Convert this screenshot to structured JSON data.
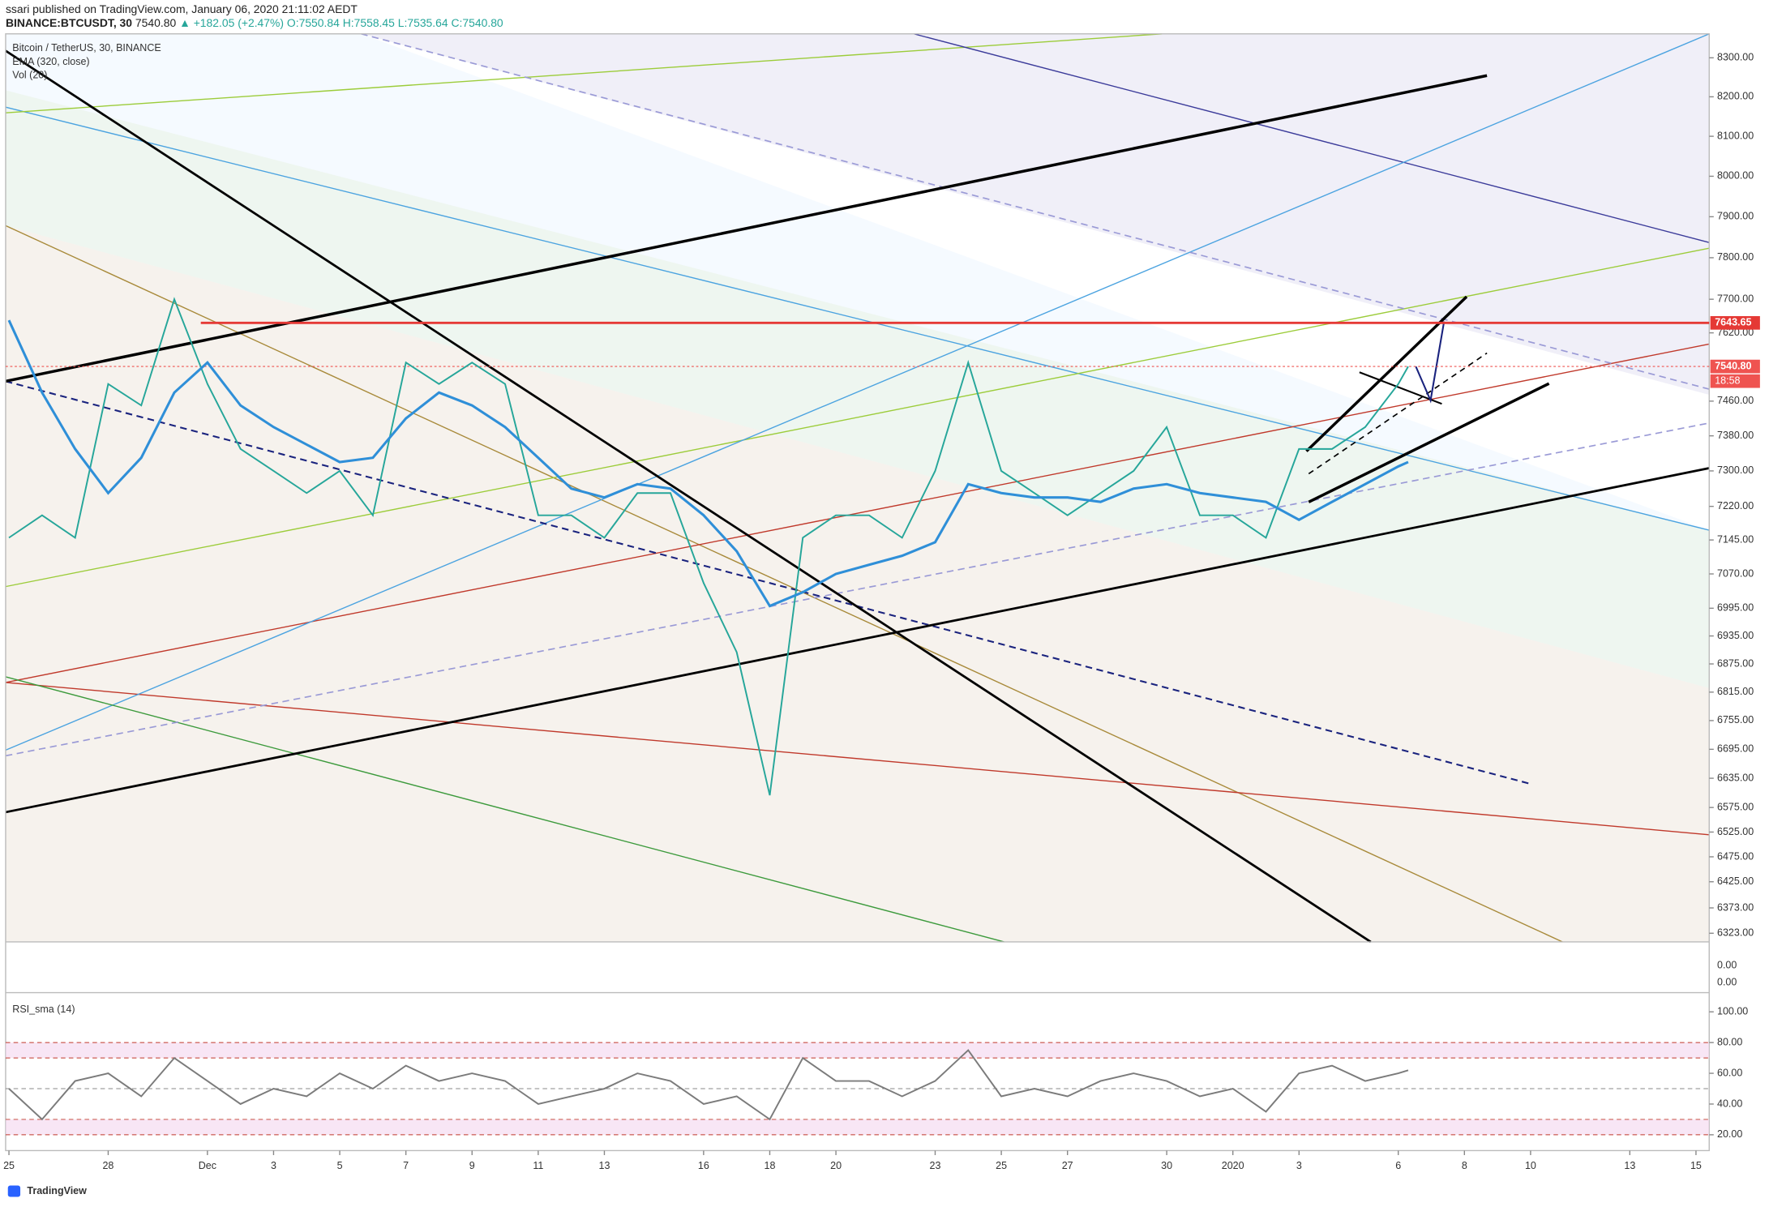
{
  "header": {
    "published": "ssari published on TradingView.com, January 06, 2020 21:11:02 AEDT",
    "symbol": "BINANCE:BTCUSDT, 30",
    "last": "7540.80",
    "change": "▲ +182.05 (+2.47%)",
    "ohlc": "O:7550.84 H:7558.45 L:7535.64 C:7540.80"
  },
  "volume_axis_labels": [
    "0.00",
    "0.00"
  ],
  "footer": {
    "brand": "TradingView"
  },
  "chart_data": [
    {
      "type": "line",
      "log_scale": true,
      "x": [
        0,
        1,
        2,
        3,
        4,
        5,
        6,
        7,
        8,
        9,
        10,
        11,
        12,
        13,
        14,
        15,
        16,
        17,
        18,
        19,
        20,
        21,
        22,
        23,
        24,
        25,
        26,
        27,
        28,
        29,
        30,
        31,
        32,
        33,
        34,
        35,
        36,
        37,
        38,
        39,
        40,
        41,
        42,
        42.3
      ],
      "series": [
        {
          "name": "Bitcoin / TetherUS, 30, BINANCE",
          "color": "#26a69a",
          "values": [
            7150,
            7200,
            7150,
            7500,
            7450,
            7700,
            7500,
            7350,
            7300,
            7250,
            7300,
            7200,
            7550,
            7500,
            7550,
            7500,
            7200,
            7200,
            7150,
            7250,
            7250,
            7050,
            6900,
            6600,
            7150,
            7200,
            7200,
            7150,
            7300,
            7550,
            7300,
            7250,
            7200,
            7250,
            7300,
            7400,
            7200,
            7200,
            7150,
            7350,
            7350,
            7400,
            7500,
            7540.8
          ]
        },
        {
          "name": "EMA (320, close)",
          "color": "#2f8fd8",
          "values": [
            7650,
            7480,
            7350,
            7250,
            7330,
            7480,
            7550,
            7450,
            7400,
            7360,
            7320,
            7330,
            7420,
            7480,
            7450,
            7400,
            7330,
            7260,
            7240,
            7270,
            7260,
            7200,
            7120,
            7000,
            7030,
            7070,
            7090,
            7110,
            7140,
            7270,
            7250,
            7240,
            7240,
            7230,
            7260,
            7270,
            7250,
            7240,
            7230,
            7190,
            7230,
            7270,
            7310,
            7320
          ]
        }
      ],
      "annotations": [
        "Vol (20)"
      ],
      "xlim": [
        -0.1,
        51.4
      ],
      "ylim": [
        6306,
        8362
      ],
      "yticks": [
        {
          "value": 8300,
          "label": "8300.00"
        },
        {
          "value": 8200,
          "label": "8200.00"
        },
        {
          "value": 8100,
          "label": "8100.00"
        },
        {
          "value": 8000,
          "label": "8000.00"
        },
        {
          "value": 7900,
          "label": "7900.00"
        },
        {
          "value": 7800,
          "label": "7800.00"
        },
        {
          "value": 7700,
          "label": "7700.00"
        },
        {
          "value": 7620,
          "label": "7620.00"
        },
        {
          "value": 7460,
          "label": "7460.00"
        },
        {
          "value": 7380,
          "label": "7380.00"
        },
        {
          "value": 7300,
          "label": "7300.00"
        },
        {
          "value": 7220,
          "label": "7220.00"
        },
        {
          "value": 7145,
          "label": "7145.00"
        },
        {
          "value": 7070,
          "label": "7070.00"
        },
        {
          "value": 6995,
          "label": "6995.00"
        },
        {
          "value": 6935,
          "label": "6935.00"
        },
        {
          "value": 6875,
          "label": "6875.00"
        },
        {
          "value": 6815,
          "label": "6815.00"
        },
        {
          "value": 6755,
          "label": "6755.00"
        },
        {
          "value": 6695,
          "label": "6695.00"
        },
        {
          "value": 6635,
          "label": "6635.00"
        },
        {
          "value": 6575,
          "label": "6575.00"
        },
        {
          "value": 6525,
          "label": "6525.00"
        },
        {
          "value": 6475,
          "label": "6475.00"
        },
        {
          "value": 6425,
          "label": "6425.00"
        },
        {
          "value": 6373,
          "label": "6373.00"
        },
        {
          "value": 6323,
          "label": "6323.00"
        }
      ],
      "price_labels": [
        {
          "value": 7643.65,
          "color": "#e53935"
        },
        {
          "value": {
            "value": 7540.8,
            "label": "7540.80"
          },
          "color": "#ef5350"
        }
      ],
      "countdown": "18:58"
    },
    {
      "type": "line",
      "x": [
        0,
        1,
        2,
        3,
        4,
        5,
        6,
        7,
        8,
        9,
        10,
        11,
        12,
        13,
        14,
        15,
        16,
        17,
        18,
        19,
        20,
        21,
        22,
        23,
        24,
        25,
        26,
        27,
        28,
        29,
        30,
        31,
        32,
        33,
        34,
        35,
        36,
        37,
        38,
        39,
        40,
        41,
        42,
        42.3
      ],
      "series": [
        {
          "name": "RSI_sma (14)",
          "color": "#7b7b7b",
          "values": [
            50,
            30,
            55,
            60,
            45,
            70,
            55,
            40,
            50,
            45,
            60,
            50,
            65,
            55,
            60,
            55,
            40,
            45,
            50,
            60,
            55,
            40,
            45,
            30,
            70,
            55,
            55,
            45,
            55,
            75,
            45,
            50,
            45,
            55,
            60,
            55,
            45,
            50,
            35,
            60,
            65,
            55,
            60,
            62
          ]
        }
      ],
      "xlim": [
        -0.1,
        51.4
      ],
      "ylim": [
        9.7,
        111
      ],
      "yticks": [
        {
          "value": 100,
          "label": "100.00"
        },
        {
          "value": 80,
          "label": "80.00"
        },
        {
          "value": 60,
          "label": "60.00"
        },
        {
          "value": 40,
          "label": "40.00"
        },
        {
          "value": 20,
          "label": "20.00"
        }
      ],
      "bands": [
        [
          70,
          80
        ],
        [
          20,
          30
        ]
      ],
      "midline": 50,
      "xticks": [
        {
          "value": 0,
          "label": "25"
        },
        {
          "value": 3,
          "label": "28"
        },
        {
          "value": 6,
          "label": "Dec"
        },
        {
          "value": 8,
          "label": "3"
        },
        {
          "value": 10,
          "label": "5"
        },
        {
          "value": 12,
          "label": "7"
        },
        {
          "value": 14,
          "label": "9"
        },
        {
          "value": 16,
          "label": "11"
        },
        {
          "value": 18,
          "label": "13"
        },
        {
          "value": 21,
          "label": "16"
        },
        {
          "value": 23,
          "label": "18"
        },
        {
          "value": 25,
          "label": "20"
        },
        {
          "value": 28,
          "label": "23"
        },
        {
          "value": 30,
          "label": "25"
        },
        {
          "value": 32,
          "label": "27"
        },
        {
          "value": 35,
          "label": "30"
        },
        {
          "value": 37,
          "label": "2020"
        },
        {
          "value": 39,
          "label": "3"
        },
        {
          "value": 42,
          "label": "6"
        },
        {
          "value": 44,
          "label": "8"
        },
        {
          "value": 46,
          "label": "10"
        },
        {
          "value": 49,
          "label": "13"
        },
        {
          "value": 51,
          "label": "15"
        }
      ]
    }
  ]
}
